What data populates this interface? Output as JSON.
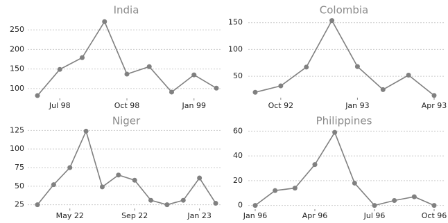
{
  "chart_data": [
    {
      "type": "line",
      "title": "India",
      "categories": [
        null,
        "Jul 98",
        null,
        null,
        "Oct 98",
        null,
        null,
        "Jan 99",
        null
      ],
      "values": [
        82,
        149,
        179,
        271,
        137,
        156,
        91,
        135,
        101
      ],
      "color": "#808080",
      "ylim": [
        75,
        275
      ],
      "yticks": [
        100,
        150,
        200,
        250
      ],
      "grid": true
    },
    {
      "type": "line",
      "title": "Colombia",
      "categories": [
        null,
        "Oct 92",
        null,
        null,
        "Jan 93",
        null,
        null,
        "Apr 93"
      ],
      "values": [
        20,
        32,
        67,
        154,
        68,
        25,
        52,
        14
      ],
      "color": "#808080",
      "ylim": [
        10,
        160
      ],
      "yticks": [
        50,
        100,
        150
      ],
      "grid": true
    },
    {
      "type": "line",
      "title": "Niger",
      "categories": [
        null,
        null,
        "May 22",
        null,
        null,
        null,
        "Sep 22",
        null,
        null,
        null,
        "Jan 23",
        null
      ],
      "values": [
        25,
        52,
        75,
        124,
        49,
        65,
        58,
        31,
        25,
        31,
        61,
        27
      ],
      "color": "#808080",
      "ylim": [
        20,
        130
      ],
      "yticks": [
        25,
        50,
        75,
        100,
        125
      ],
      "grid": true
    },
    {
      "type": "line",
      "title": "Philippines",
      "categories": [
        "Jan 96",
        null,
        null,
        "Apr 96",
        null,
        null,
        "Jul 96",
        null,
        null,
        "Oct 96"
      ],
      "values": [
        0,
        12,
        14,
        33,
        59,
        18,
        0,
        4,
        7,
        0
      ],
      "color": "#808080",
      "ylim": [
        -3,
        63
      ],
      "yticks": [
        0,
        20,
        40,
        60
      ],
      "grid": true
    }
  ]
}
